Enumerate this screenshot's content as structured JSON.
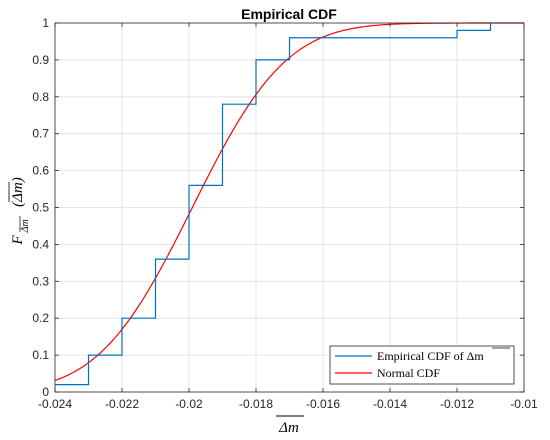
{
  "chart_data": {
    "type": "line",
    "title": "Empirical CDF",
    "xlabel": "Δm",
    "ylabel": {
      "prefix": "F",
      "subscript": "Δm",
      "argument": "(Δm)"
    },
    "xlim": [
      -0.024,
      -0.01
    ],
    "ylim": [
      0,
      1
    ],
    "x_ticks": [
      -0.024,
      -0.022,
      -0.02,
      -0.018,
      -0.016,
      -0.014,
      -0.012,
      -0.01
    ],
    "x_tick_labels": [
      "-0.024",
      "-0.022",
      "-0.02",
      "-0.018",
      "-0.016",
      "-0.014",
      "-0.012",
      "-0.01"
    ],
    "y_ticks": [
      0,
      0.1,
      0.2,
      0.3,
      0.4,
      0.5,
      0.6,
      0.7,
      0.8,
      0.9,
      1
    ],
    "y_tick_labels": [
      "0",
      "0.1",
      "0.2",
      "0.3",
      "0.4",
      "0.5",
      "0.6",
      "0.7",
      "0.8",
      "0.9",
      "1"
    ],
    "grid": true,
    "legend_position": "bottom-right",
    "series": [
      {
        "name": "Empirical CDF of Δm",
        "style": "step",
        "color": "#0072BD",
        "x": [
          -0.024,
          -0.023,
          -0.022,
          -0.021,
          -0.02,
          -0.019,
          -0.018,
          -0.017,
          -0.012,
          -0.011
        ],
        "y": [
          0.02,
          0.1,
          0.2,
          0.36,
          0.56,
          0.78,
          0.9,
          0.96,
          0.98,
          1.0
        ]
      },
      {
        "name": "Normal CDF",
        "style": "curve",
        "color": "#FF0000",
        "mean": -0.0199,
        "std": 0.0022
      }
    ]
  }
}
